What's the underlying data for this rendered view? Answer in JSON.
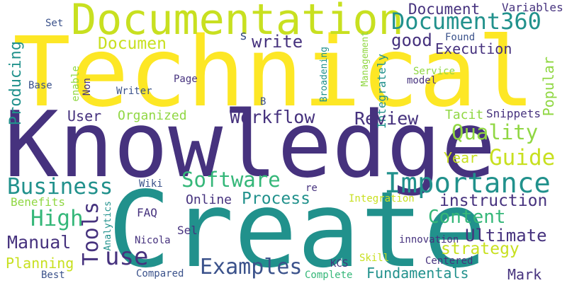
{
  "colors": {
    "background": "#ffffff",
    "purple": "#46327e",
    "violet": "#3b528b",
    "teal": "#21918c",
    "green": "#35b779",
    "lime": "#90d743",
    "yellow": "#fde725"
  },
  "words": {
    "technical": "Technical",
    "knowledge": "Knowledge",
    "create": "Create",
    "documentation": "Documentation",
    "document360": "Document360",
    "document": "Document",
    "variables": "Variables",
    "set": "Set",
    "producing": "Producing",
    "documen": "Documen",
    "write": "write",
    "s": "s",
    "good": "good",
    "execution": "Execution",
    "found": "Found",
    "broadening": "Broadening",
    "management": "Management",
    "integrately": "Integrately",
    "popular": "Popular",
    "service": "Service",
    "enable": "enable",
    "non": "Non",
    "base": "Base",
    "page": "Page",
    "model": "model",
    "writer": "Writer",
    "b": "B",
    "user": "User",
    "organized": "Organized",
    "workflow": "Workflow",
    "review": "Review",
    "tacit": "Tacit",
    "snippets": "Snippets",
    "quality": "Quality",
    "year": "Year",
    "guide": "Guide",
    "software": "Software",
    "importance": "Importance",
    "business": "Business",
    "wiki": "Wiki",
    "re": "re",
    "online": "Online",
    "process": "Process",
    "instruction": "instruction",
    "benefits": "Benefits",
    "integration": "Integration",
    "high": "High",
    "tools": "Tools",
    "analytics": "Analytics",
    "faq": "FAQ",
    "content": "Content",
    "sel": "Sel",
    "ultimate": "Ultimate",
    "manual": "Manual",
    "nicola": "Nicola",
    "innovation": "innovation",
    "strategy": "strategy",
    "use": "use",
    "planning": "Planning",
    "examples": "Examples",
    "kcs": "KCS",
    "skill": "Skill",
    "centered": "Centered",
    "best": "Best",
    "compared": "Compared",
    "complete": "Complete",
    "fundamentals": "Fundamentals",
    "mark": "Mark"
  }
}
